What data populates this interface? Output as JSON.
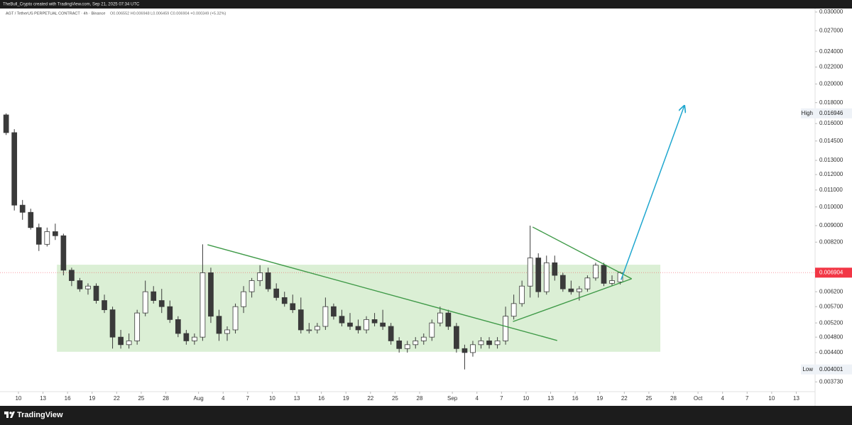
{
  "header": {
    "credit": "TheBull_Crypto created with TradingView.com, Sep 21, 2025 07:34 UTC"
  },
  "chart_data": {
    "type": "candlestick",
    "title": "AGT / TetherUS PERPETUAL CONTRACT · 4h · Binance",
    "ohlc_text": "O0.006552 H0.006948 L0.006459 C0.006904 +0.000349 (+5.32%)",
    "log_scale": true,
    "up_color": "#ffffff",
    "down_color": "#3a3a3a",
    "x": [
      -1.5,
      -0.5,
      0.5,
      1.5,
      2.5,
      3.5,
      4.5,
      5.5,
      6.5,
      7.5,
      8.5,
      9.5,
      10.5,
      11.5,
      12.5,
      13.5,
      14.5,
      15.5,
      16.5,
      17.5,
      18.5,
      19.5,
      20.5,
      21.5,
      22.5,
      23.5,
      24.5,
      25.5,
      26.5,
      27.5,
      28.5,
      29.5,
      30.5,
      31.5,
      32.5,
      33.5,
      34.5,
      35.5,
      36.5,
      37.5,
      38.5,
      39.5,
      40.5,
      41.5,
      42.5,
      43.5,
      44.5,
      45.5,
      46.5,
      47.5,
      48.5,
      49.5,
      50.5,
      51.5,
      52.5,
      53.5,
      54.5,
      55.5,
      56.5,
      57.5,
      58.5,
      59.5,
      60.5,
      61.5,
      62.5,
      63.5,
      64.5,
      65.5,
      66.5,
      67.5,
      68.5,
      69.5,
      70.5,
      71.5,
      72.5,
      73.5
    ],
    "open": [
      0.0168,
      0.0152,
      0.0101,
      0.0097,
      0.0089,
      0.0081,
      0.0087,
      0.0085,
      0.007,
      0.0066,
      0.0063,
      0.0064,
      0.0059,
      0.0056,
      0.0048,
      0.0046,
      0.0047,
      0.0055,
      0.0062,
      0.0059,
      0.0057,
      0.0053,
      0.0049,
      0.0047,
      0.0048,
      0.0069,
      0.0054,
      0.0049,
      0.005,
      0.0057,
      0.0062,
      0.0066,
      0.0069,
      0.0063,
      0.006,
      0.0058,
      0.0056,
      0.005,
      0.005,
      0.0051,
      0.0057,
      0.0054,
      0.0052,
      0.0051,
      0.005,
      0.0053,
      0.0052,
      0.0051,
      0.0047,
      0.0045,
      0.0046,
      0.0047,
      0.0048,
      0.0052,
      0.0055,
      0.0051,
      0.0045,
      0.0044,
      0.0046,
      0.0047,
      0.0046,
      0.0047,
      0.0054,
      0.0058,
      0.0064,
      0.0075,
      0.0062,
      0.0073,
      0.0068,
      0.0063,
      0.0062,
      0.0063,
      0.0067,
      0.0072,
      0.0065,
      0.006552
    ],
    "high": [
      0.016946,
      0.0155,
      0.0104,
      0.0099,
      0.0091,
      0.0089,
      0.0091,
      0.0086,
      0.0071,
      0.0067,
      0.0065,
      0.0065,
      0.0061,
      0.0057,
      0.005,
      0.0049,
      0.0056,
      0.0066,
      0.0064,
      0.0063,
      0.0059,
      0.0054,
      0.005,
      0.0049,
      0.0081,
      0.0071,
      0.0056,
      0.0051,
      0.0058,
      0.0064,
      0.0067,
      0.0072,
      0.0071,
      0.0065,
      0.0062,
      0.0061,
      0.006,
      0.0052,
      0.0052,
      0.006,
      0.0058,
      0.0056,
      0.0055,
      0.0053,
      0.0054,
      0.0055,
      0.0056,
      0.0052,
      0.0048,
      0.0047,
      0.0048,
      0.0049,
      0.0053,
      0.0057,
      0.0056,
      0.0052,
      0.0046,
      0.0047,
      0.0048,
      0.0048,
      0.0048,
      0.0057,
      0.0061,
      0.0066,
      0.009,
      0.0077,
      0.0076,
      0.0076,
      0.0069,
      0.0066,
      0.0064,
      0.0068,
      0.0073,
      0.0073,
      0.0068,
      0.006948
    ],
    "low": [
      0.015,
      0.0098,
      0.0093,
      0.0088,
      0.0078,
      0.008,
      0.0083,
      0.0068,
      0.0064,
      0.0062,
      0.0061,
      0.0058,
      0.0055,
      0.0045,
      0.0045,
      0.0045,
      0.0046,
      0.0054,
      0.0058,
      0.0055,
      0.0052,
      0.0048,
      0.0046,
      0.0046,
      0.0047,
      0.0052,
      0.0047,
      0.0047,
      0.0049,
      0.0055,
      0.006,
      0.0064,
      0.0062,
      0.0059,
      0.0057,
      0.0055,
      0.0049,
      0.0049,
      0.0049,
      0.005,
      0.0053,
      0.0051,
      0.005,
      0.0049,
      0.0049,
      0.0051,
      0.005,
      0.0046,
      0.0044,
      0.0044,
      0.0045,
      0.0046,
      0.0047,
      0.0051,
      0.005,
      0.0044,
      0.004001,
      0.0043,
      0.0045,
      0.0045,
      0.0045,
      0.0046,
      0.0053,
      0.0057,
      0.006,
      0.006,
      0.0061,
      0.0066,
      0.0062,
      0.0061,
      0.0059,
      0.0062,
      0.0066,
      0.0064,
      0.0064,
      0.006459
    ],
    "close": [
      0.0152,
      0.0101,
      0.0097,
      0.0089,
      0.0081,
      0.0087,
      0.0085,
      0.007,
      0.0066,
      0.0063,
      0.0064,
      0.0059,
      0.0056,
      0.0048,
      0.0046,
      0.0047,
      0.0055,
      0.0062,
      0.0059,
      0.0057,
      0.0053,
      0.0049,
      0.0047,
      0.0048,
      0.0069,
      0.0054,
      0.0049,
      0.005,
      0.0057,
      0.0062,
      0.0066,
      0.0069,
      0.0063,
      0.006,
      0.0058,
      0.0056,
      0.005,
      0.005,
      0.0051,
      0.0057,
      0.0054,
      0.0052,
      0.0051,
      0.005,
      0.0053,
      0.0052,
      0.0051,
      0.0047,
      0.0045,
      0.0046,
      0.0047,
      0.0048,
      0.0052,
      0.0055,
      0.0051,
      0.0045,
      0.0044,
      0.0046,
      0.0047,
      0.0046,
      0.0047,
      0.0054,
      0.0058,
      0.0064,
      0.0075,
      0.0062,
      0.0073,
      0.0068,
      0.0063,
      0.0062,
      0.0063,
      0.0067,
      0.0072,
      0.0065,
      0.0066,
      0.006904
    ],
    "xlim": [
      -2.25,
      97.3
    ],
    "ylim": [
      0.00353,
      0.0306
    ],
    "xticks": [
      {
        "value": 0,
        "label": "10"
      },
      {
        "value": 3,
        "label": "13"
      },
      {
        "value": 6,
        "label": "16"
      },
      {
        "value": 9,
        "label": "19"
      },
      {
        "value": 12,
        "label": "22"
      },
      {
        "value": 15,
        "label": "25"
      },
      {
        "value": 18,
        "label": "28"
      },
      {
        "value": 22,
        "label": "Aug"
      },
      {
        "value": 25,
        "label": "4"
      },
      {
        "value": 28,
        "label": "7"
      },
      {
        "value": 31,
        "label": "10"
      },
      {
        "value": 34,
        "label": "13"
      },
      {
        "value": 37,
        "label": "16"
      },
      {
        "value": 40,
        "label": "19"
      },
      {
        "value": 43,
        "label": "22"
      },
      {
        "value": 46,
        "label": "25"
      },
      {
        "value": 49,
        "label": "28"
      },
      {
        "value": 53,
        "label": "Sep"
      },
      {
        "value": 56,
        "label": "4"
      },
      {
        "value": 59,
        "label": "7"
      },
      {
        "value": 62,
        "label": "10"
      },
      {
        "value": 65,
        "label": "13"
      },
      {
        "value": 68,
        "label": "16"
      },
      {
        "value": 71,
        "label": "19"
      },
      {
        "value": 74,
        "label": "22"
      },
      {
        "value": 77,
        "label": "25"
      },
      {
        "value": 80,
        "label": "28"
      },
      {
        "value": 83,
        "label": "Oct"
      },
      {
        "value": 86,
        "label": "4"
      },
      {
        "value": 89,
        "label": "7"
      },
      {
        "value": 92,
        "label": "10"
      },
      {
        "value": 95,
        "label": "13"
      }
    ],
    "yticks": [
      {
        "value": 0.03,
        "label": "0.030000"
      },
      {
        "value": 0.027,
        "label": "0.027000"
      },
      {
        "value": 0.024,
        "label": "0.024000"
      },
      {
        "value": 0.022,
        "label": "0.022000"
      },
      {
        "value": 0.02,
        "label": "0.020000"
      },
      {
        "value": 0.018,
        "label": "0.018000"
      },
      {
        "value": 0.016,
        "label": "0.016000"
      },
      {
        "value": 0.0145,
        "label": "0.014500"
      },
      {
        "value": 0.013,
        "label": "0.013000"
      },
      {
        "value": 0.012,
        "label": "0.012000"
      },
      {
        "value": 0.011,
        "label": "0.011000"
      },
      {
        "value": 0.01,
        "label": "0.010000"
      },
      {
        "value": 0.009,
        "label": "0.009000"
      },
      {
        "value": 0.0082,
        "label": "0.008200"
      },
      {
        "value": 0.0062,
        "label": "0.006200"
      },
      {
        "value": 0.0057,
        "label": "0.005700"
      },
      {
        "value": 0.0052,
        "label": "0.005200"
      },
      {
        "value": 0.0048,
        "label": "0.004800"
      },
      {
        "value": 0.0044,
        "label": "0.004400"
      },
      {
        "value": 0.00373,
        "label": "0.003730"
      }
    ],
    "last_price": {
      "value": 0.006904,
      "color": "#f23645"
    },
    "high_marker": {
      "name": "High",
      "value": 0.016946
    },
    "low_marker": {
      "name": "Low",
      "value": 0.004001
    },
    "zone": {
      "x": [
        4.7,
        78.4
      ],
      "y": [
        0.00442,
        0.00722
      ],
      "color": "#cfe9c7"
    },
    "trend_lines": [
      {
        "x": [
          23.1,
          65.8
        ],
        "y": [
          0.00808,
          0.00471
        ],
        "color": "#3f9a48"
      },
      {
        "x": [
          62.8,
          74.9
        ],
        "y": [
          0.00893,
          0.00667
        ],
        "color": "#3f9a48"
      },
      {
        "x": [
          60.4,
          74.9
        ],
        "y": [
          0.00524,
          0.00667
        ],
        "color": "#3f9a48"
      }
    ],
    "arrow": {
      "x": [
        73.6,
        81.3
      ],
      "y": [
        0.00663,
        0.01762
      ],
      "color": "#1fa7cf"
    }
  },
  "footer": {
    "brand": "TradingView"
  }
}
